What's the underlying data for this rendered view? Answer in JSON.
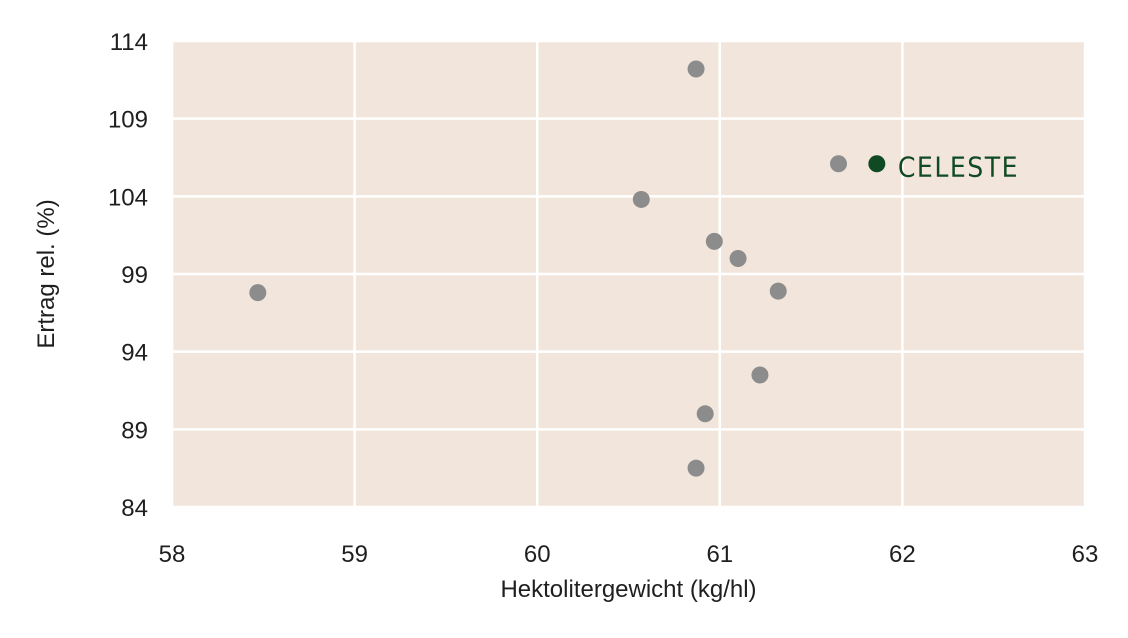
{
  "chart_data": {
    "type": "scatter",
    "title": "",
    "xlabel": "Hektolitergewicht (kg/hl)",
    "ylabel": "Ertrag rel. (%)",
    "xlim": [
      58,
      63
    ],
    "ylim": [
      84,
      114
    ],
    "xticks": [
      "58",
      "59",
      "60",
      "61",
      "62",
      "63"
    ],
    "yticks": [
      "114",
      "109",
      "104",
      "99",
      "94",
      "89",
      "84"
    ],
    "grid": true,
    "series": [
      {
        "points": [
          {
            "x": 58.47,
            "y": 97.8
          },
          {
            "x": 60.57,
            "y": 103.8
          },
          {
            "x": 60.87,
            "y": 112.2
          },
          {
            "x": 60.97,
            "y": 101.1
          },
          {
            "x": 61.1,
            "y": 100.0
          },
          {
            "x": 61.32,
            "y": 97.9
          },
          {
            "x": 61.65,
            "y": 106.1
          },
          {
            "x": 61.22,
            "y": 92.5
          },
          {
            "x": 60.92,
            "y": 90.0
          },
          {
            "x": 60.87,
            "y": 86.5
          }
        ]
      },
      {
        "label": "CELESTE",
        "points": [
          {
            "x": 61.86,
            "y": 106.1
          }
        ]
      }
    ],
    "colors": {
      "plot_background": "#f2e6dc",
      "grid": "#ffffff",
      "points": "#8c8c8c",
      "highlight": "#0f4a24"
    }
  }
}
